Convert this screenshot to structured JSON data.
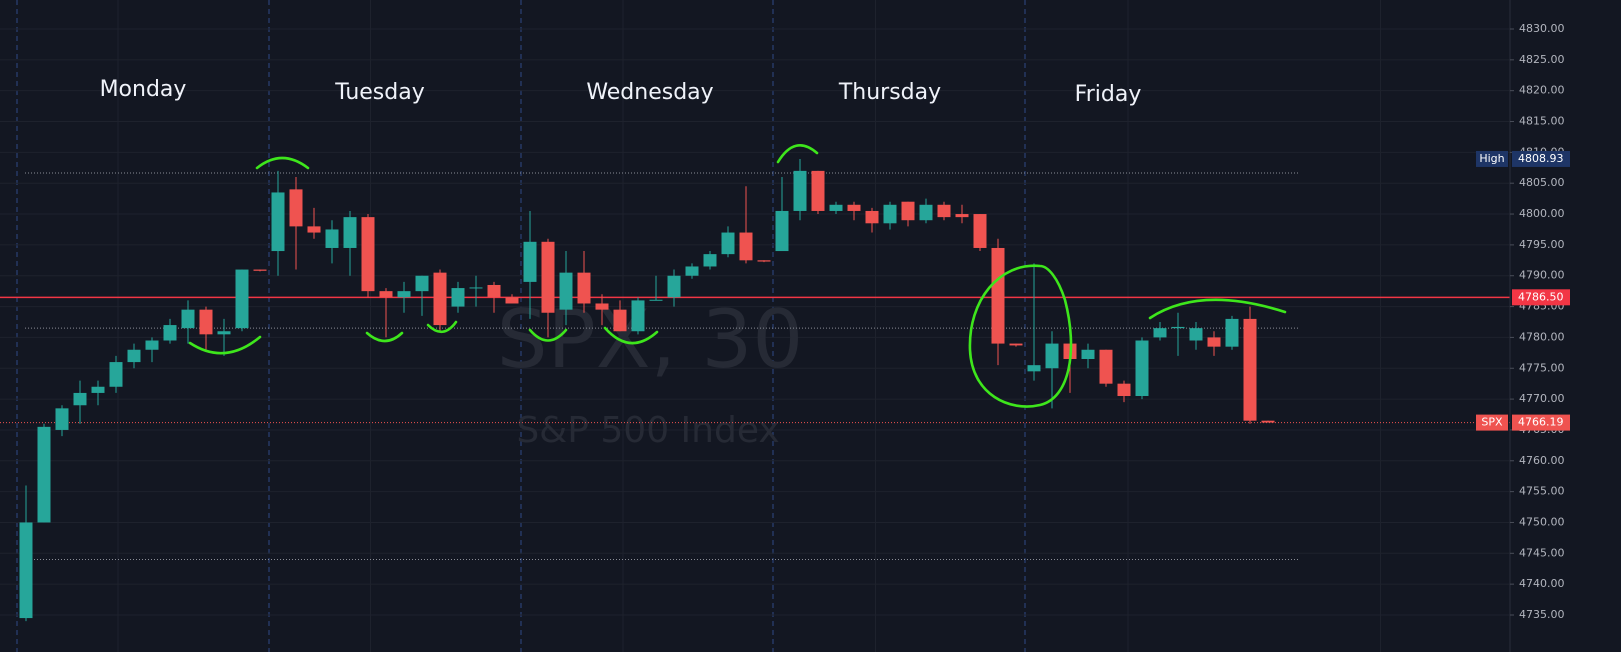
{
  "chart_data": {
    "type": "candlestick",
    "title": "SPX, 30",
    "subtitle": "S&P 500 Index",
    "annotations": [
      "Monday",
      "Tuesday",
      "Wednesday",
      "Thursday",
      "Friday"
    ],
    "open": [
      4734.5,
      4750,
      4765,
      4769,
      4771,
      4772,
      4776,
      4778,
      4779.5,
      4781.5,
      4784.5,
      4780.5,
      4781.5,
      4791,
      4794,
      4804,
      4798,
      4794.5,
      4794.5,
      4799.5,
      4787.5,
      4786.5,
      4787.5,
      4790.5,
      4785,
      4788,
      4788.5,
      4786.5,
      4789,
      4795.5,
      4784.5,
      4790.5,
      4785.5,
      4784.5,
      4781,
      4786,
      4786.5,
      4790,
      4791.5,
      4793.5,
      4797,
      4792.5,
      4794,
      4800.5,
      4807,
      4800.5,
      4801.5,
      4800.5,
      4798.5,
      4802,
      4799,
      4801.5,
      4800,
      4800,
      4794.5,
      4779,
      4774.5,
      4775,
      4779,
      4776.5,
      4778,
      4772.5,
      4770.5,
      4780,
      4781.5,
      4779.5,
      4780,
      4778.5,
      4783,
      4766.5
    ],
    "high": [
      4756,
      4766,
      4769,
      4773,
      4773,
      4777,
      4779,
      4780,
      4783,
      4786,
      4785,
      4783,
      4791,
      4791,
      4807,
      4806,
      4801,
      4799,
      4800.5,
      4800,
      4788,
      4789,
      4790,
      4791,
      4789,
      4790,
      4789,
      4787,
      4800.5,
      4796,
      4794,
      4794,
      4787,
      4786,
      4786.5,
      4790,
      4791,
      4792,
      4794,
      4798,
      4804.5,
      4792.5,
      4806,
      4808.93,
      4807,
      4802,
      4802,
      4801,
      4802,
      4802,
      4802.5,
      4802,
      4801.5,
      4800,
      4796,
      4779,
      4792,
      4781,
      4779,
      4779,
      4778,
      4773,
      4780,
      4782.5,
      4784,
      4782.5,
      4781,
      4783.5,
      4785,
      4766.5
    ],
    "low": [
      4734,
      4750,
      4764,
      4766,
      4769,
      4771,
      4775,
      4776,
      4779,
      4779,
      4778,
      4777,
      4781,
      4790.7,
      4790,
      4791,
      4796,
      4792,
      4790,
      4786.5,
      4780,
      4784,
      4783.5,
      4781,
      4784,
      4785,
      4784,
      4785.5,
      4783,
      4780,
      4782,
      4784,
      4782,
      4781,
      4780.5,
      4786,
      4785,
      4789.5,
      4791,
      4793,
      4792,
      4792.2,
      4794,
      4799,
      4800,
      4800,
      4799,
      4797,
      4797.5,
      4798,
      4798.5,
      4799,
      4798.5,
      4794,
      4775.5,
      4778.5,
      4773,
      4768.5,
      4771,
      4775,
      4772,
      4769.5,
      4770,
      4779.5,
      4777,
      4778,
      4777,
      4778,
      4766,
      4766.2
    ],
    "close": [
      4750,
      4765.5,
      4768.5,
      4771,
      4772,
      4776,
      4778,
      4779.5,
      4782,
      4784.5,
      4780.5,
      4781,
      4791,
      4790.8,
      4803.5,
      4798,
      4797,
      4797.5,
      4799.5,
      4787.5,
      4786.5,
      4787.5,
      4790,
      4782,
      4788,
      4788.1,
      4786.5,
      4785.5,
      4795.5,
      4784,
      4790.5,
      4785.5,
      4784.5,
      4781,
      4786,
      4786.1,
      4790,
      4791.5,
      4793.5,
      4797,
      4792.5,
      4792.3,
      4800.5,
      4807,
      4800.5,
      4801.5,
      4800.5,
      4798.5,
      4801.5,
      4799,
      4801.5,
      4799.5,
      4799.5,
      4794.5,
      4779,
      4778.7,
      4775.5,
      4779,
      4776.5,
      4778,
      4772.5,
      4770.5,
      4779.5,
      4781.5,
      4781.7,
      4781.5,
      4778.5,
      4783,
      4766.5,
      4766.2
    ],
    "colors": {
      "up": "#26a69a",
      "down": "#ef5350"
    },
    "ylim": [
      4729,
      4834.7
    ],
    "yticks": [
      {
        "value": 4735,
        "label": "4735.00"
      },
      {
        "value": 4740,
        "label": "4740.00"
      },
      {
        "value": 4745,
        "label": "4745.00"
      },
      {
        "value": 4750,
        "label": "4750.00"
      },
      {
        "value": 4755,
        "label": "4755.00"
      },
      {
        "value": 4760,
        "label": "4760.00"
      },
      {
        "value": 4765,
        "label": "4765.00"
      },
      {
        "value": 4770,
        "label": "4770.00"
      },
      {
        "value": 4775,
        "label": "4775.00"
      },
      {
        "value": 4780,
        "label": "4780.00"
      },
      {
        "value": 4785,
        "label": "4785.00"
      },
      {
        "value": 4790,
        "label": "4790.00"
      },
      {
        "value": 4795,
        "label": "4795.00"
      },
      {
        "value": 4800,
        "label": "4800.00"
      },
      {
        "value": 4805,
        "label": "4805.00"
      },
      {
        "value": 4810,
        "label": "4810.00"
      },
      {
        "value": 4815,
        "label": "4815.00"
      },
      {
        "value": 4820,
        "label": "4820.00"
      },
      {
        "value": 4825,
        "label": "4825.00"
      },
      {
        "value": 4830,
        "label": "4830.00"
      }
    ],
    "grid": true,
    "levels": [
      4806.65,
      4781.5,
      4744
    ],
    "price_lines": [
      {
        "value": 4808.93,
        "label": "4808.93",
        "tag": "High",
        "color": "#1e3566",
        "style": "none"
      },
      {
        "value": 4786.5,
        "label": "4786.50",
        "color": "#f23645",
        "style": "solid"
      },
      {
        "value": 4766.19,
        "label": "4766.19",
        "tag": "SPX",
        "color": "#ef5350",
        "style": "dotted"
      }
    ]
  }
}
